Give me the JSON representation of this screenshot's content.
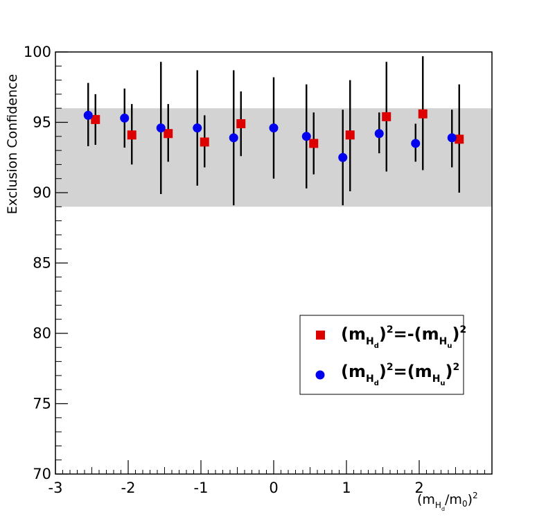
{
  "chart_data": {
    "type": "scatter",
    "title": "",
    "xlabel": {
      "base": "(m",
      "sub": "H",
      "subsub": "d",
      "tail": "/m",
      "tail_sub": "0",
      "close": ")",
      "sup": "2"
    },
    "ylabel": "Exclusion Confidence",
    "xlim": [
      -3,
      3
    ],
    "ylim": [
      70,
      100
    ],
    "x_ticks": [
      -3,
      -2,
      -1,
      0,
      1,
      2
    ],
    "x_tick_labels": [
      "-3",
      "-2",
      "-1",
      "0",
      "1",
      "2"
    ],
    "y_ticks": [
      70,
      75,
      80,
      85,
      90,
      95,
      100
    ],
    "y_tick_labels": [
      "70",
      "75",
      "80",
      "85",
      "90",
      "95",
      "100"
    ],
    "band": {
      "low": 89,
      "high": 96,
      "color": "#d3d3d3"
    },
    "legend_position": "right",
    "series": [
      {
        "marker": "square",
        "color": "#dd0000",
        "legend": {
          "open": "(m",
          "sub": "H",
          "subsub": "d",
          "close": ")",
          "sup": "2",
          "eq": "=-",
          "open2": "(m",
          "sub2": "H",
          "subsub2": "u",
          "close2": ")",
          "sup2": "2"
        },
        "points": [
          {
            "x": -2.45,
            "y": 95.2,
            "ylo": 93.4,
            "yhi": 97.0
          },
          {
            "x": -1.95,
            "y": 94.1,
            "ylo": 92.0,
            "yhi": 96.3
          },
          {
            "x": -1.45,
            "y": 94.2,
            "ylo": 92.2,
            "yhi": 96.3
          },
          {
            "x": -0.95,
            "y": 93.6,
            "ylo": 91.8,
            "yhi": 95.5
          },
          {
            "x": -0.45,
            "y": 94.9,
            "ylo": 92.6,
            "yhi": 97.2
          },
          {
            "x": 0.55,
            "y": 93.5,
            "ylo": 91.3,
            "yhi": 95.7
          },
          {
            "x": 1.05,
            "y": 94.1,
            "ylo": 90.1,
            "yhi": 98.0
          },
          {
            "x": 1.55,
            "y": 95.4,
            "ylo": 91.5,
            "yhi": 99.3
          },
          {
            "x": 2.05,
            "y": 95.6,
            "ylo": 91.6,
            "yhi": 99.7
          },
          {
            "x": 2.55,
            "y": 93.8,
            "ylo": 90.0,
            "yhi": 97.7
          }
        ]
      },
      {
        "marker": "circle",
        "color": "#0000ee",
        "legend": {
          "open": "(m",
          "sub": "H",
          "subsub": "d",
          "close": ")",
          "sup": "2",
          "eq": "=",
          "open2": "(m",
          "sub2": "H",
          "subsub2": "u",
          "close2": ")",
          "sup2": "2"
        },
        "points": [
          {
            "x": -2.55,
            "y": 95.5,
            "ylo": 93.3,
            "yhi": 97.8
          },
          {
            "x": -2.05,
            "y": 95.3,
            "ylo": 93.2,
            "yhi": 97.4
          },
          {
            "x": -1.55,
            "y": 94.6,
            "ylo": 89.9,
            "yhi": 99.3
          },
          {
            "x": -1.05,
            "y": 94.6,
            "ylo": 90.5,
            "yhi": 98.7
          },
          {
            "x": -0.55,
            "y": 93.9,
            "ylo": 89.1,
            "yhi": 98.7
          },
          {
            "x": 0.0,
            "y": 94.6,
            "ylo": 91.0,
            "yhi": 98.2
          },
          {
            "x": 0.45,
            "y": 94.0,
            "ylo": 90.3,
            "yhi": 97.7
          },
          {
            "x": 0.95,
            "y": 92.5,
            "ylo": 89.1,
            "yhi": 95.9
          },
          {
            "x": 1.45,
            "y": 94.2,
            "ylo": 92.8,
            "yhi": 95.7
          },
          {
            "x": 1.95,
            "y": 93.5,
            "ylo": 92.2,
            "yhi": 94.9
          },
          {
            "x": 2.45,
            "y": 93.9,
            "ylo": 91.8,
            "yhi": 95.9
          }
        ]
      }
    ]
  }
}
